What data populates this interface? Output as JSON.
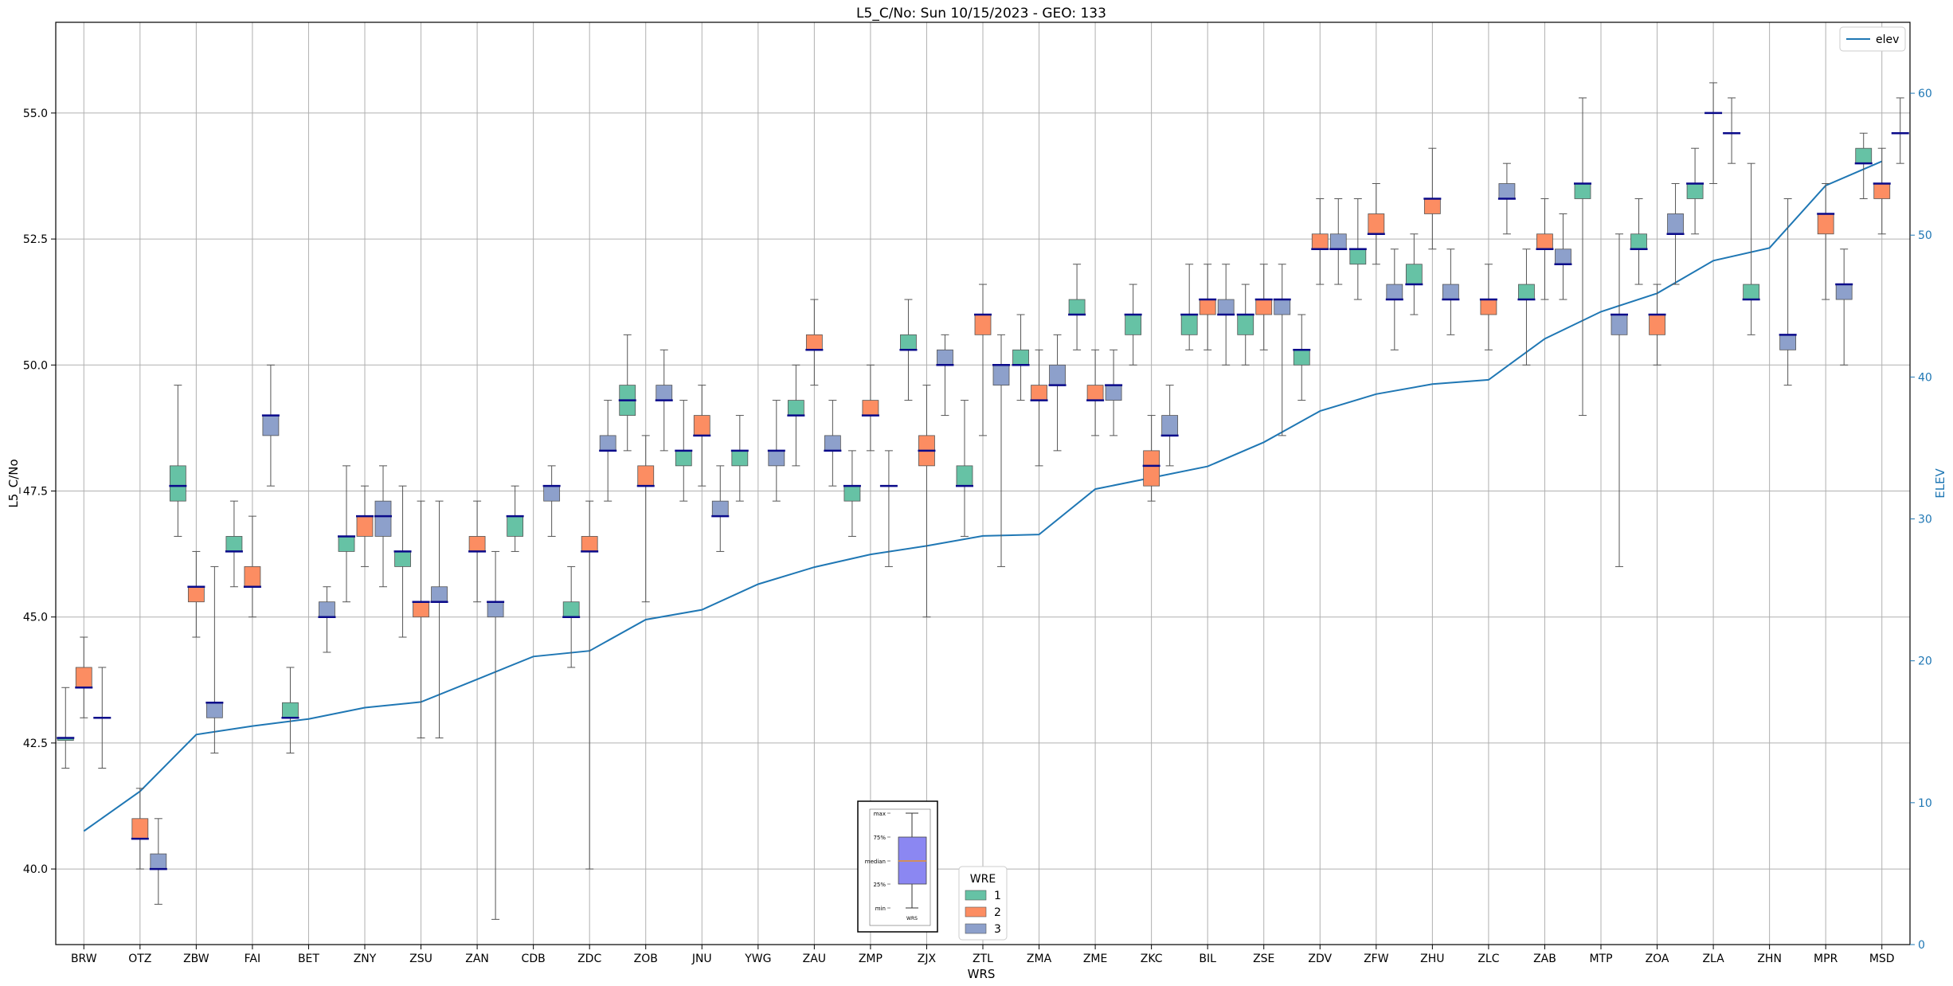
{
  "chart_data": {
    "type": "box",
    "title": "L5_C/No: Sun 10/15/2023 - GEO: 133",
    "xlabel": "WRS",
    "ylabel": "L5_C/No",
    "y2label": "ELEV",
    "ylim": [
      38.5,
      56.8
    ],
    "y2lim": [
      0,
      65
    ],
    "yticks": [
      "40.0",
      "42.5",
      "45.0",
      "47.5",
      "50.0",
      "52.5",
      "55.0"
    ],
    "y2ticks": [
      "0",
      "10",
      "20",
      "30",
      "40",
      "50",
      "60"
    ],
    "grid": true,
    "categories": [
      "BRW",
      "OTZ",
      "ZBW",
      "FAI",
      "BET",
      "ZNY",
      "ZSU",
      "ZAN",
      "CDB",
      "ZDC",
      "ZOB",
      "JNU",
      "YWG",
      "ZAU",
      "ZMP",
      "ZJX",
      "ZTL",
      "ZMA",
      "ZME",
      "ZKC",
      "BIL",
      "ZSE",
      "ZDV",
      "ZFW",
      "ZHU",
      "ZLC",
      "ZAB",
      "MTP",
      "ZOA",
      "ZLA",
      "ZHN",
      "MPR",
      "MSD"
    ],
    "hue_legend": {
      "title": "WRE",
      "entries": [
        {
          "name": "1",
          "color": "#66c2a5"
        },
        {
          "name": "2",
          "color": "#fc8d62"
        },
        {
          "name": "3",
          "color": "#8da0cb"
        }
      ],
      "placement": "lower-center"
    },
    "box_guide": {
      "labels": [
        "max",
        "75%",
        "median",
        "25%",
        "min"
      ],
      "xlabel": "WRS"
    },
    "series": [
      {
        "wre": "1",
        "boxes": [
          [
            0,
            42.0,
            42.55,
            42.6,
            42.6,
            43.6
          ],
          [
            2,
            46.6,
            47.3,
            47.6,
            48.0,
            49.6
          ],
          [
            3,
            45.6,
            46.3,
            46.3,
            46.6,
            47.3
          ],
          [
            4,
            42.3,
            43.0,
            43.0,
            43.3,
            44.0
          ],
          [
            5,
            45.3,
            46.3,
            46.6,
            46.6,
            48.0
          ],
          [
            6,
            44.6,
            46.0,
            46.3,
            46.3,
            47.6
          ],
          [
            8,
            46.3,
            46.6,
            47.0,
            47.0,
            47.6
          ],
          [
            9,
            44.0,
            45.0,
            45.0,
            45.3,
            46.0
          ],
          [
            10,
            48.3,
            49.0,
            49.3,
            49.6,
            50.6
          ],
          [
            11,
            47.3,
            48.0,
            48.3,
            48.3,
            49.3
          ],
          [
            12,
            47.3,
            48.0,
            48.3,
            48.3,
            49.0
          ],
          [
            13,
            48.0,
            49.0,
            49.0,
            49.3,
            50.0
          ],
          [
            14,
            46.6,
            47.3,
            47.6,
            47.6,
            48.3
          ],
          [
            15,
            49.3,
            50.3,
            50.3,
            50.6,
            51.3
          ],
          [
            16,
            46.6,
            47.6,
            47.6,
            48.0,
            49.3
          ],
          [
            17,
            49.3,
            50.0,
            50.0,
            50.3,
            51.0
          ],
          [
            18,
            50.3,
            51.0,
            51.0,
            51.3,
            52.0
          ],
          [
            19,
            50.0,
            50.6,
            51.0,
            51.0,
            51.6
          ],
          [
            20,
            50.3,
            50.6,
            51.0,
            51.0,
            52.0
          ],
          [
            21,
            50.0,
            50.6,
            51.0,
            51.0,
            51.6
          ],
          [
            22,
            49.3,
            50.0,
            50.3,
            50.3,
            51.0
          ],
          [
            23,
            51.3,
            52.0,
            52.3,
            52.3,
            53.3
          ],
          [
            24,
            51.0,
            51.6,
            51.6,
            52.0,
            52.6
          ],
          [
            26,
            50.0,
            51.3,
            51.3,
            51.6,
            52.3
          ],
          [
            27,
            49.0,
            53.3,
            53.6,
            53.6,
            55.3
          ],
          [
            28,
            51.6,
            52.3,
            52.3,
            52.6,
            53.3
          ],
          [
            29,
            52.6,
            53.3,
            53.6,
            53.6,
            54.3
          ],
          [
            30,
            50.6,
            51.3,
            51.3,
            51.6,
            54.0
          ],
          [
            32,
            53.3,
            54.0,
            54.0,
            54.3,
            54.6
          ]
        ]
      },
      {
        "wre": "2",
        "boxes": [
          [
            0,
            43.0,
            43.6,
            43.6,
            44.0,
            44.6
          ],
          [
            1,
            40.0,
            40.6,
            40.6,
            41.0,
            41.6
          ],
          [
            2,
            44.6,
            45.3,
            45.6,
            45.6,
            46.3
          ],
          [
            3,
            45.0,
            45.6,
            45.6,
            46.0,
            47.0
          ],
          [
            5,
            46.0,
            46.6,
            47.0,
            47.0,
            47.6
          ],
          [
            6,
            42.6,
            45.0,
            45.3,
            45.3,
            47.3
          ],
          [
            7,
            45.3,
            46.3,
            46.3,
            46.6,
            47.3
          ],
          [
            9,
            40.0,
            46.3,
            46.3,
            46.6,
            47.3
          ],
          [
            10,
            45.3,
            47.6,
            47.6,
            48.0,
            48.6
          ],
          [
            11,
            47.6,
            48.6,
            48.6,
            49.0,
            49.6
          ],
          [
            13,
            49.6,
            50.3,
            50.3,
            50.6,
            51.3
          ],
          [
            14,
            48.3,
            49.0,
            49.0,
            49.3,
            50.0
          ],
          [
            15,
            45.0,
            48.0,
            48.3,
            48.6,
            49.6
          ],
          [
            16,
            48.6,
            50.6,
            51.0,
            51.0,
            51.6
          ],
          [
            17,
            48.0,
            49.3,
            49.3,
            49.6,
            50.3
          ],
          [
            18,
            48.6,
            49.3,
            49.3,
            49.6,
            50.3
          ],
          [
            19,
            47.3,
            47.6,
            48.0,
            48.3,
            49.0
          ],
          [
            20,
            50.3,
            51.0,
            51.3,
            51.3,
            52.0
          ],
          [
            21,
            50.3,
            51.0,
            51.3,
            51.3,
            52.0
          ],
          [
            22,
            51.6,
            52.3,
            52.3,
            52.6,
            53.3
          ],
          [
            23,
            52.0,
            52.6,
            52.6,
            53.0,
            53.6
          ],
          [
            24,
            52.3,
            53.0,
            53.3,
            53.3,
            54.3
          ],
          [
            25,
            50.3,
            51.0,
            51.3,
            51.3,
            52.0
          ],
          [
            26,
            51.3,
            52.3,
            52.3,
            52.6,
            53.3
          ],
          [
            28,
            50.0,
            50.6,
            51.0,
            51.0,
            51.6
          ],
          [
            29,
            53.6,
            55.0,
            55.0,
            55.0,
            55.6
          ],
          [
            31,
            51.3,
            52.6,
            53.0,
            53.0,
            53.6
          ],
          [
            32,
            52.6,
            53.3,
            53.6,
            53.6,
            54.3
          ]
        ]
      },
      {
        "wre": "3",
        "boxes": [
          [
            0,
            42.0,
            43.0,
            43.0,
            43.0,
            44.0
          ],
          [
            1,
            39.3,
            40.0,
            40.0,
            40.3,
            41.0
          ],
          [
            2,
            42.3,
            43.0,
            43.3,
            43.3,
            46.0
          ],
          [
            3,
            47.6,
            48.6,
            49.0,
            49.0,
            50.0
          ],
          [
            4,
            44.3,
            45.0,
            45.0,
            45.3,
            45.6
          ],
          [
            5,
            45.6,
            46.6,
            47.0,
            47.3,
            48.0
          ],
          [
            6,
            42.6,
            45.3,
            45.3,
            45.6,
            47.3
          ],
          [
            7,
            39.0,
            45.0,
            45.3,
            45.3,
            46.3
          ],
          [
            8,
            46.6,
            47.3,
            47.6,
            47.6,
            48.0
          ],
          [
            9,
            47.3,
            48.3,
            48.3,
            48.6,
            49.3
          ],
          [
            10,
            48.3,
            49.3,
            49.3,
            49.6,
            50.3
          ],
          [
            11,
            46.3,
            47.0,
            47.0,
            47.3,
            48.0
          ],
          [
            12,
            47.3,
            48.0,
            48.3,
            48.3,
            49.3
          ],
          [
            13,
            47.6,
            48.3,
            48.3,
            48.6,
            49.3
          ],
          [
            14,
            46.0,
            47.6,
            47.6,
            47.6,
            48.3
          ],
          [
            15,
            49.0,
            50.0,
            50.0,
            50.3,
            50.6
          ],
          [
            16,
            46.0,
            49.6,
            50.0,
            50.0,
            50.6
          ],
          [
            17,
            48.3,
            49.6,
            49.6,
            50.0,
            50.6
          ],
          [
            18,
            48.6,
            49.3,
            49.6,
            49.6,
            50.3
          ],
          [
            19,
            48.0,
            48.6,
            48.6,
            49.0,
            49.6
          ],
          [
            20,
            50.0,
            51.0,
            51.0,
            51.3,
            52.0
          ],
          [
            21,
            48.6,
            51.0,
            51.3,
            51.3,
            52.0
          ],
          [
            22,
            51.6,
            52.3,
            52.3,
            52.6,
            53.3
          ],
          [
            23,
            50.3,
            51.3,
            51.3,
            51.6,
            52.3
          ],
          [
            24,
            50.6,
            51.3,
            51.3,
            51.6,
            52.3
          ],
          [
            25,
            52.6,
            53.3,
            53.3,
            53.6,
            54.0
          ],
          [
            26,
            51.3,
            52.0,
            52.0,
            52.3,
            53.0
          ],
          [
            27,
            46.0,
            50.6,
            51.0,
            51.0,
            52.6
          ],
          [
            28,
            51.6,
            52.6,
            52.6,
            53.0,
            53.6
          ],
          [
            29,
            54.0,
            54.6,
            54.6,
            54.6,
            55.3
          ],
          [
            30,
            49.6,
            50.3,
            50.6,
            50.6,
            53.3
          ],
          [
            31,
            50.0,
            51.3,
            51.6,
            51.6,
            52.3
          ],
          [
            32,
            54.0,
            54.6,
            54.6,
            54.6,
            55.3
          ]
        ]
      }
    ],
    "box_fields": [
      "category_index",
      "min",
      "q1",
      "median",
      "q3",
      "max"
    ],
    "line_series": {
      "name": "elev",
      "axis": "right",
      "color": "#1f77b4",
      "values": [
        8,
        10.8,
        14.8,
        15.4,
        15.9,
        16.7,
        17.1,
        18.7,
        20.3,
        20.7,
        22.9,
        23.6,
        25.4,
        26.6,
        27.5,
        28.1,
        28.8,
        28.9,
        32.1,
        32.9,
        33.7,
        35.4,
        37.6,
        38.8,
        39.5,
        39.8,
        42.7,
        44.6,
        45.9,
        48.2,
        49.1,
        53.5,
        55.2
      ]
    }
  }
}
